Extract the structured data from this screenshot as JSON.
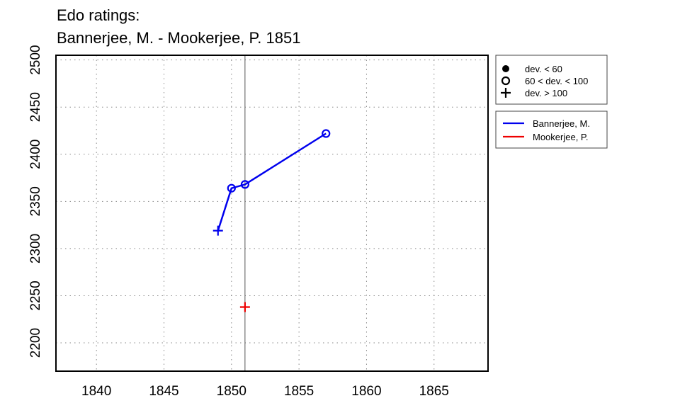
{
  "chart_data": {
    "type": "line",
    "title": "Edo ratings:",
    "subtitle": "Bannerjee, M. - Mookerjee, P. 1851",
    "xlabel": "",
    "ylabel": "",
    "xlim": [
      1837,
      1869
    ],
    "ylim": [
      2170,
      2505
    ],
    "x_ticks": [
      "1840",
      "1845",
      "1850",
      "1855",
      "1860",
      "1865"
    ],
    "y_ticks": [
      "2200",
      "2250",
      "2300",
      "2350",
      "2400",
      "2450",
      "2500"
    ],
    "grid": true,
    "reference_line_x": 1851,
    "series": [
      {
        "name": "Bannerjee, M.",
        "color": "#0000ee",
        "points": [
          {
            "x": 1849,
            "y": 2319,
            "marker": "plus"
          },
          {
            "x": 1850,
            "y": 2364,
            "marker": "open-circle"
          },
          {
            "x": 1851,
            "y": 2368,
            "marker": "open-circle"
          },
          {
            "x": 1857,
            "y": 2422,
            "marker": "open-circle"
          }
        ]
      },
      {
        "name": "Mookerjee, P.",
        "color": "#ee0000",
        "points": [
          {
            "x": 1851,
            "y": 2238,
            "marker": "plus"
          }
        ]
      }
    ],
    "marker_legend": [
      {
        "symbol": "filled-circle",
        "label": "dev. < 60"
      },
      {
        "symbol": "open-circle",
        "label": "60 < dev. < 100"
      },
      {
        "symbol": "plus",
        "label": "dev. > 100"
      }
    ],
    "legend_position": "right"
  }
}
